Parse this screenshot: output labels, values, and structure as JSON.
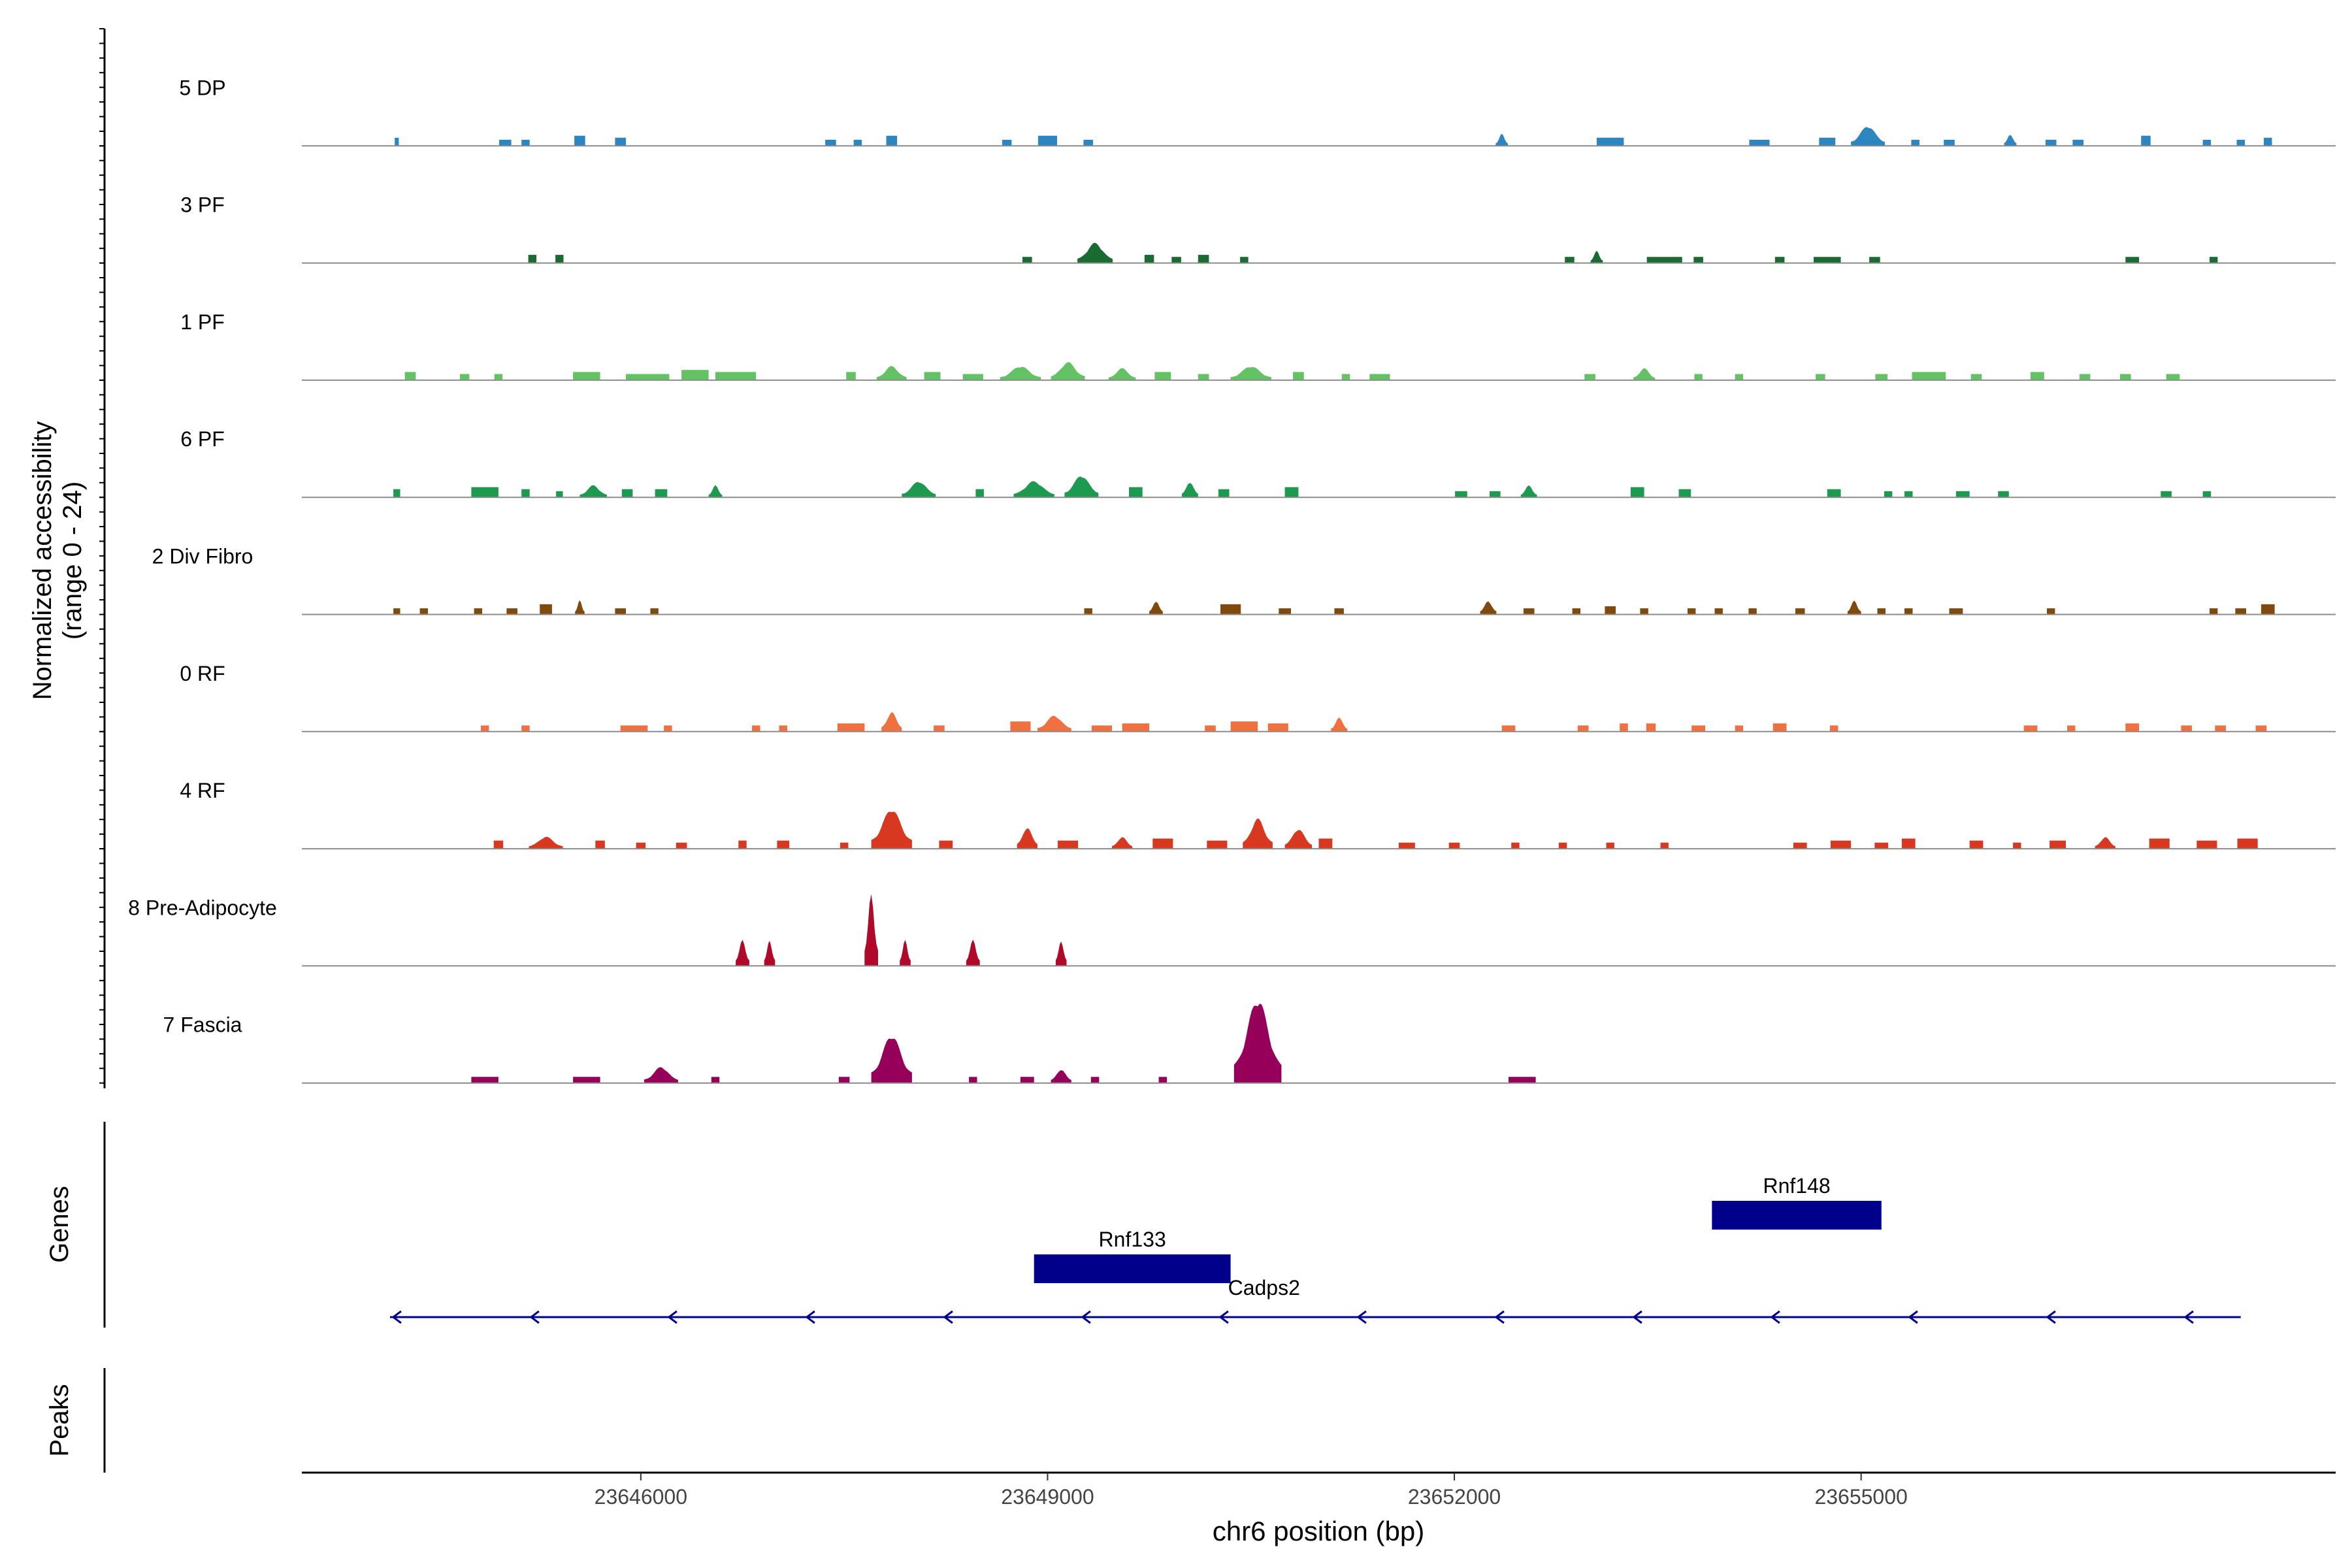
{
  "chart_data": {
    "type": "area",
    "y_axis_title_line1": "Normalized accessibility",
    "y_axis_title_line2": "(range 0 - 24)",
    "yrange": [
      0,
      24
    ],
    "x_axis_title": "chr6 position (bp)",
    "xlim": [
      23643500,
      23658500
    ],
    "x_ticks": [
      23646000,
      23649000,
      23652000,
      23655000
    ],
    "x_tick_labels": [
      "23646000",
      "23649000",
      "23652000",
      "23655000"
    ],
    "tracks": [
      {
        "name": "5 DP",
        "color": "#2e86c1",
        "peaks": [
          [
            23644200,
            30,
            2
          ],
          [
            23645000,
            90,
            1.5
          ],
          [
            23645150,
            60,
            1.5
          ],
          [
            23645550,
            80,
            2.5
          ],
          [
            23645850,
            80,
            2
          ],
          [
            23647400,
            80,
            1.5
          ],
          [
            23647600,
            60,
            1.5
          ],
          [
            23647850,
            80,
            2.5
          ],
          [
            23648700,
            70,
            1.5
          ],
          [
            23649000,
            140,
            2.5
          ],
          [
            23649300,
            70,
            1.5
          ],
          [
            23652350,
            90,
            3
          ],
          [
            23653150,
            200,
            2
          ],
          [
            23654250,
            150,
            1.5
          ],
          [
            23654750,
            120,
            2
          ],
          [
            23655050,
            250,
            5
          ],
          [
            23655400,
            60,
            1.5
          ],
          [
            23655650,
            80,
            1.5
          ],
          [
            23656100,
            90,
            3
          ],
          [
            23656400,
            80,
            1.5
          ],
          [
            23656600,
            80,
            1.5
          ],
          [
            23657100,
            70,
            2.5
          ],
          [
            23657550,
            60,
            1.5
          ],
          [
            23657800,
            60,
            1.5
          ],
          [
            23658000,
            60,
            2
          ]
        ]
      },
      {
        "name": "3 PF",
        "color": "#1a6b32",
        "peaks": [
          [
            23645200,
            60,
            2
          ],
          [
            23645400,
            60,
            2
          ],
          [
            23648850,
            70,
            1.5
          ],
          [
            23649350,
            260,
            5
          ],
          [
            23649750,
            70,
            2
          ],
          [
            23649950,
            70,
            1.5
          ],
          [
            23650150,
            80,
            2
          ],
          [
            23650450,
            60,
            1.5
          ],
          [
            23652850,
            70,
            1.5
          ],
          [
            23653050,
            90,
            3
          ],
          [
            23653550,
            260,
            1.5
          ],
          [
            23653800,
            70,
            1.5
          ],
          [
            23654400,
            70,
            1.5
          ],
          [
            23654750,
            200,
            1.5
          ],
          [
            23655100,
            80,
            1.5
          ],
          [
            23657000,
            100,
            1.5
          ],
          [
            23657600,
            60,
            1.5
          ]
        ]
      },
      {
        "name": "1 PF",
        "color": "#63c263",
        "peaks": [
          [
            23644300,
            80,
            2
          ],
          [
            23644700,
            70,
            1.5
          ],
          [
            23644950,
            60,
            1.5
          ],
          [
            23645600,
            200,
            2
          ],
          [
            23646050,
            320,
            1.5
          ],
          [
            23646400,
            200,
            2.5
          ],
          [
            23646700,
            300,
            2
          ],
          [
            23647550,
            70,
            2
          ],
          [
            23647850,
            220,
            3.5
          ],
          [
            23648150,
            120,
            2
          ],
          [
            23648450,
            150,
            1.5
          ],
          [
            23648800,
            300,
            3.5
          ],
          [
            23649150,
            250,
            4.5
          ],
          [
            23649550,
            200,
            3
          ],
          [
            23649850,
            120,
            2
          ],
          [
            23650150,
            80,
            1.5
          ],
          [
            23650500,
            300,
            3.5
          ],
          [
            23650850,
            80,
            2
          ],
          [
            23651200,
            60,
            1.5
          ],
          [
            23651450,
            150,
            1.5
          ],
          [
            23653000,
            80,
            1.5
          ],
          [
            23653400,
            160,
            3
          ],
          [
            23653800,
            60,
            1.5
          ],
          [
            23654100,
            60,
            1.5
          ],
          [
            23654700,
            70,
            1.5
          ],
          [
            23655150,
            90,
            1.5
          ],
          [
            23655500,
            250,
            2
          ],
          [
            23655850,
            80,
            1.5
          ],
          [
            23656300,
            100,
            2
          ],
          [
            23656650,
            80,
            1.5
          ],
          [
            23656950,
            80,
            1.5
          ],
          [
            23657300,
            100,
            1.5
          ]
        ]
      },
      {
        "name": "6 PF",
        "color": "#1e9a50",
        "peaks": [
          [
            23644200,
            50,
            2
          ],
          [
            23644850,
            200,
            2.5
          ],
          [
            23645150,
            60,
            2
          ],
          [
            23645400,
            50,
            1.5
          ],
          [
            23645650,
            200,
            3
          ],
          [
            23645900,
            80,
            2
          ],
          [
            23646150,
            90,
            2
          ],
          [
            23646550,
            100,
            3
          ],
          [
            23648050,
            250,
            4
          ],
          [
            23648500,
            60,
            2
          ],
          [
            23648900,
            300,
            4
          ],
          [
            23649250,
            250,
            5.5
          ],
          [
            23649650,
            100,
            2.5
          ],
          [
            23650050,
            120,
            4
          ],
          [
            23650300,
            80,
            2
          ],
          [
            23650800,
            100,
            2.5
          ],
          [
            23652050,
            90,
            1.5
          ],
          [
            23652300,
            80,
            1.5
          ],
          [
            23652550,
            120,
            3
          ],
          [
            23653350,
            100,
            2.5
          ],
          [
            23653700,
            90,
            2
          ],
          [
            23654800,
            100,
            2
          ],
          [
            23655200,
            60,
            1.5
          ],
          [
            23655350,
            60,
            1.5
          ],
          [
            23655750,
            100,
            1.5
          ],
          [
            23656050,
            80,
            1.5
          ],
          [
            23657250,
            80,
            1.5
          ],
          [
            23657550,
            60,
            1.5
          ]
        ]
      },
      {
        "name": "2 Div Fibro",
        "color": "#7f4a0c",
        "peaks": [
          [
            23644200,
            50,
            1.5
          ],
          [
            23644400,
            60,
            1.5
          ],
          [
            23644800,
            60,
            1.5
          ],
          [
            23645050,
            80,
            1.5
          ],
          [
            23645300,
            90,
            2.5
          ],
          [
            23645550,
            70,
            3.5
          ],
          [
            23645850,
            80,
            1.5
          ],
          [
            23646100,
            60,
            1.5
          ],
          [
            23649300,
            60,
            1.5
          ],
          [
            23649800,
            100,
            3.5
          ],
          [
            23650350,
            150,
            2.5
          ],
          [
            23650750,
            90,
            1.5
          ],
          [
            23651150,
            70,
            1.5
          ],
          [
            23652250,
            120,
            3.5
          ],
          [
            23652550,
            80,
            1.5
          ],
          [
            23652900,
            60,
            1.5
          ],
          [
            23653150,
            80,
            2
          ],
          [
            23653400,
            60,
            1.5
          ],
          [
            23653750,
            60,
            1.5
          ],
          [
            23653950,
            60,
            1.5
          ],
          [
            23654200,
            60,
            1.5
          ],
          [
            23654550,
            70,
            1.5
          ],
          [
            23654950,
            100,
            3.5
          ],
          [
            23655150,
            60,
            1.5
          ],
          [
            23655350,
            60,
            1.5
          ],
          [
            23655700,
            100,
            1.5
          ],
          [
            23656400,
            60,
            1.5
          ],
          [
            23657600,
            60,
            1.5
          ],
          [
            23657800,
            80,
            1.5
          ],
          [
            23658000,
            100,
            2.5
          ]
        ]
      },
      {
        "name": "0 RF",
        "color": "#f07040",
        "peaks": [
          [
            23644850,
            60,
            1.5
          ],
          [
            23645150,
            60,
            1.5
          ],
          [
            23645950,
            200,
            1.5
          ],
          [
            23646200,
            60,
            1.5
          ],
          [
            23646850,
            60,
            1.5
          ],
          [
            23647050,
            60,
            1.5
          ],
          [
            23647550,
            200,
            2
          ],
          [
            23647850,
            150,
            5
          ],
          [
            23648200,
            80,
            1.5
          ],
          [
            23648800,
            150,
            2.5
          ],
          [
            23649050,
            250,
            4
          ],
          [
            23649400,
            150,
            1.5
          ],
          [
            23649650,
            200,
            2
          ],
          [
            23650200,
            80,
            1.5
          ],
          [
            23650450,
            200,
            2.5
          ],
          [
            23650700,
            150,
            2
          ],
          [
            23651150,
            120,
            3.5
          ],
          [
            23652400,
            100,
            1.5
          ],
          [
            23652950,
            80,
            1.5
          ],
          [
            23653250,
            60,
            2
          ],
          [
            23653450,
            70,
            2
          ],
          [
            23653800,
            100,
            1.5
          ],
          [
            23654100,
            60,
            1.5
          ],
          [
            23654400,
            100,
            2
          ],
          [
            23654800,
            60,
            1.5
          ],
          [
            23656250,
            100,
            1.5
          ],
          [
            23656550,
            60,
            1.5
          ],
          [
            23657000,
            100,
            2
          ],
          [
            23657400,
            80,
            1.5
          ],
          [
            23657650,
            80,
            1.5
          ],
          [
            23657950,
            80,
            1.5
          ]
        ]
      },
      {
        "name": "4 RF",
        "color": "#d93820",
        "peaks": [
          [
            23644950,
            70,
            2
          ],
          [
            23645300,
            250,
            3
          ],
          [
            23645700,
            70,
            2
          ],
          [
            23646000,
            70,
            1.5
          ],
          [
            23646300,
            80,
            1.5
          ],
          [
            23646750,
            60,
            2
          ],
          [
            23647050,
            90,
            2
          ],
          [
            23647500,
            60,
            1.5
          ],
          [
            23647850,
            300,
            10
          ],
          [
            23648250,
            100,
            2
          ],
          [
            23648850,
            150,
            5.5
          ],
          [
            23649150,
            150,
            2
          ],
          [
            23649550,
            150,
            3
          ],
          [
            23649850,
            150,
            2.5
          ],
          [
            23650250,
            150,
            2
          ],
          [
            23650550,
            220,
            7.5
          ],
          [
            23650850,
            200,
            5
          ],
          [
            23651050,
            100,
            2.5
          ],
          [
            23651650,
            120,
            1.5
          ],
          [
            23652000,
            80,
            1.5
          ],
          [
            23652450,
            60,
            1.5
          ],
          [
            23652800,
            60,
            1.5
          ],
          [
            23653150,
            60,
            1.5
          ],
          [
            23653550,
            60,
            1.5
          ],
          [
            23654550,
            100,
            1.5
          ],
          [
            23654850,
            150,
            2
          ],
          [
            23655150,
            100,
            1.5
          ],
          [
            23655350,
            100,
            2.5
          ],
          [
            23655850,
            100,
            2
          ],
          [
            23656150,
            60,
            1.5
          ],
          [
            23656450,
            120,
            2
          ],
          [
            23656800,
            150,
            3
          ],
          [
            23657200,
            150,
            2.5
          ],
          [
            23657550,
            150,
            2
          ],
          [
            23657850,
            150,
            2.5
          ]
        ]
      },
      {
        "name": "8 Pre-Adipocyte",
        "color": "#b0092a",
        "peaks": [
          [
            23646750,
            100,
            6.5
          ],
          [
            23646950,
            80,
            6.5
          ],
          [
            23647700,
            100,
            18
          ],
          [
            23647950,
            80,
            6.5
          ],
          [
            23648450,
            100,
            6.5
          ],
          [
            23649100,
            80,
            6.5
          ]
        ]
      },
      {
        "name": "7 Fascia",
        "color": "#96005a",
        "peaks": [
          [
            23644850,
            200,
            1.5
          ],
          [
            23645600,
            200,
            1.5
          ],
          [
            23646150,
            250,
            4
          ],
          [
            23646550,
            60,
            1.5
          ],
          [
            23647500,
            80,
            1.5
          ],
          [
            23647850,
            300,
            12
          ],
          [
            23648450,
            60,
            1.5
          ],
          [
            23648850,
            100,
            1.5
          ],
          [
            23649100,
            150,
            3.5
          ],
          [
            23649350,
            60,
            1.5
          ],
          [
            23649850,
            60,
            1.5
          ],
          [
            23650550,
            350,
            21
          ],
          [
            23652500,
            200,
            1.5
          ]
        ]
      }
    ],
    "genes": [
      {
        "name": "Rnf133",
        "start": 23648900,
        "end": 23650350
      },
      {
        "name": "Rnf148",
        "start": 23653900,
        "end": 23655150
      }
    ],
    "transcript": {
      "name": "Cadps2",
      "start": 23644150,
      "end": 23657800,
      "strand": "-"
    },
    "genes_panel_label": "Genes",
    "peaks_panel_label": "Peaks"
  }
}
